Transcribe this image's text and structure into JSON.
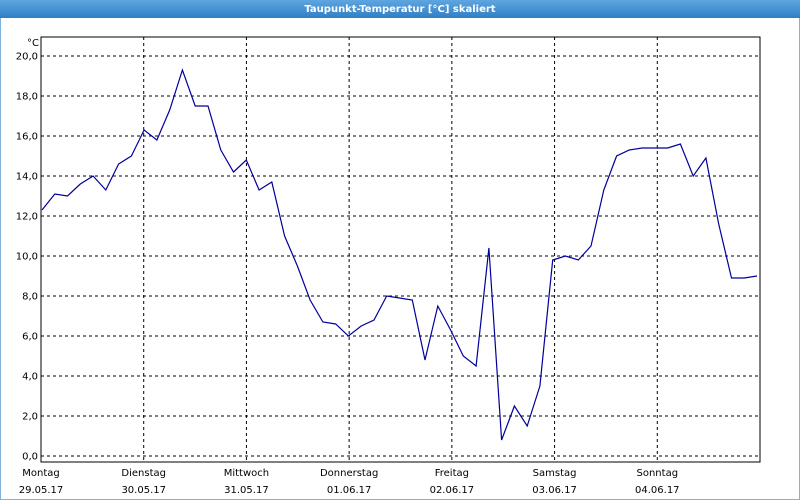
{
  "window_title": "Taupunkt-Temperatur [°C] skaliert",
  "chart_data": {
    "type": "line",
    "unit_label": "°C",
    "x_labels": [
      {
        "day": "Montag",
        "date": "29.05.17"
      },
      {
        "day": "Dienstag",
        "date": "30.05.17"
      },
      {
        "day": "Mittwoch",
        "date": "31.05.17"
      },
      {
        "day": "Donnerstag",
        "date": "01.06.17"
      },
      {
        "day": "Freitag",
        "date": "02.06.17"
      },
      {
        "day": "Samstag",
        "date": "03.06.17"
      },
      {
        "day": "Sonntag",
        "date": "04.06.17"
      }
    ],
    "values": [
      12.3,
      13.1,
      13.0,
      13.6,
      14.0,
      13.3,
      14.6,
      15.0,
      16.3,
      15.8,
      17.3,
      19.3,
      17.5,
      17.5,
      15.3,
      14.2,
      14.8,
      13.3,
      13.7,
      11.0,
      9.5,
      7.8,
      6.7,
      6.6,
      6.0,
      6.5,
      6.8,
      8.0,
      7.9,
      7.8,
      4.8,
      7.5,
      6.3,
      5.0,
      4.5,
      10.4,
      0.8,
      2.5,
      1.5,
      3.5,
      9.8,
      10.0,
      9.8,
      10.5,
      13.3,
      15.0,
      15.3,
      15.4,
      15.4,
      15.4,
      15.6,
      14.0,
      14.9,
      11.6,
      8.9,
      8.9,
      9.0
    ],
    "color": "#000099",
    "ylim": [
      -0.3,
      20.95
    ],
    "yticks": [
      {
        "value": 0,
        "label": "0,0"
      },
      {
        "value": 2,
        "label": "2,0"
      },
      {
        "value": 4,
        "label": "4,0"
      },
      {
        "value": 6,
        "label": "6,0"
      },
      {
        "value": 8,
        "label": "8,0"
      },
      {
        "value": 10,
        "label": "10,0"
      },
      {
        "value": 12,
        "label": "12,0"
      },
      {
        "value": 14,
        "label": "14,0"
      },
      {
        "value": 16,
        "label": "16,0"
      },
      {
        "value": 18,
        "label": "18,0"
      },
      {
        "value": 20,
        "label": "20,0"
      }
    ],
    "grid": true
  }
}
